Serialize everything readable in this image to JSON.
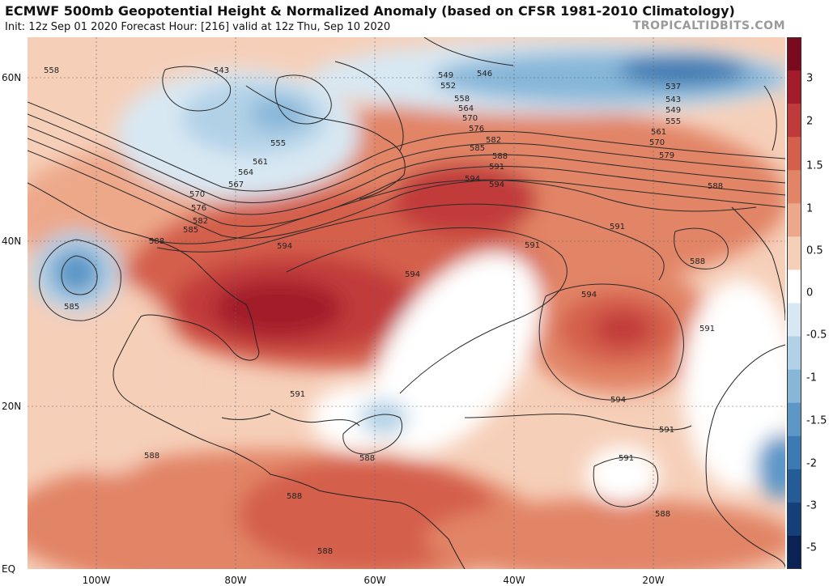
{
  "header": {
    "title": "ECMWF 500mb Geopotential Height & Normalized Anomaly (based on CFSR 1981-2010 Climatology)",
    "subtitle": "Init: 12z Sep 01 2020   Forecast Hour: [216]   valid at 12z Thu, Sep 10 2020",
    "brand": "TROPICALTIDBITS.COM"
  },
  "map": {
    "lat_labels": [
      "60N",
      "40N",
      "20N",
      "EQ"
    ],
    "lon_labels": [
      "100W",
      "80W",
      "60W",
      "40W",
      "20W"
    ],
    "contour_labels": [
      "558",
      "543",
      "546",
      "549",
      "552",
      "558",
      "564",
      "570",
      "576",
      "582",
      "585",
      "588",
      "591",
      "594",
      "537",
      "543",
      "549",
      "555",
      "561",
      "570",
      "579",
      "588",
      "555",
      "561",
      "564",
      "567",
      "570",
      "576",
      "582",
      "585",
      "588",
      "594",
      "591",
      "594",
      "591",
      "588",
      "585",
      "594",
      "591",
      "594",
      "591",
      "594",
      "591",
      "591",
      "588",
      "588",
      "588",
      "588",
      "588",
      "588"
    ]
  },
  "colorbar": {
    "labels": [
      "3",
      "2",
      "1.5",
      "1",
      "0.5",
      "0",
      "-0.5",
      "-1",
      "-1.5",
      "-2",
      "-3",
      "-5"
    ],
    "colors": [
      "#7a0a1e",
      "#a31a2a",
      "#c13a3a",
      "#d45f4c",
      "#e28466",
      "#eda88a",
      "#f6cfb9",
      "#ffffff",
      "#d8e8f3",
      "#b2d1e7",
      "#86b6d8",
      "#5c97c7",
      "#3d7ab3",
      "#245c98",
      "#143f78",
      "#0b2354"
    ]
  }
}
